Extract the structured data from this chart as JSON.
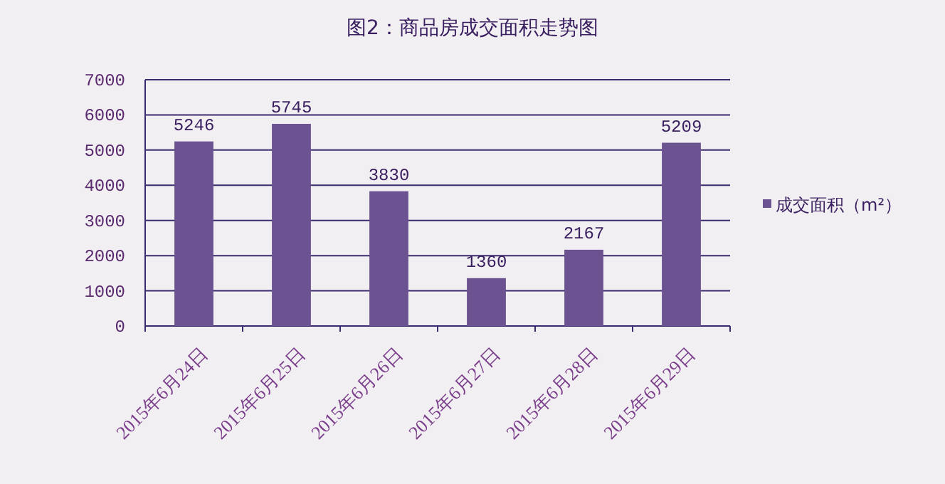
{
  "chart_data": {
    "type": "bar",
    "title": "图2：商品房成交面积走势图",
    "categories": [
      "2015年6月24日",
      "2015年6月25日",
      "2015年6月26日",
      "2015年6月27日",
      "2015年6月28日",
      "2015年6月29日"
    ],
    "series": [
      {
        "name": "成交面积（m²）",
        "color": "#6b5290",
        "values": [
          5246,
          5745,
          3830,
          1360,
          2167,
          5209
        ]
      }
    ],
    "ylim": [
      0,
      7000
    ],
    "yticks": [
      0,
      1000,
      2000,
      3000,
      4000,
      5000,
      6000,
      7000
    ],
    "grid": "y",
    "legend": "right",
    "data_labels": true
  }
}
